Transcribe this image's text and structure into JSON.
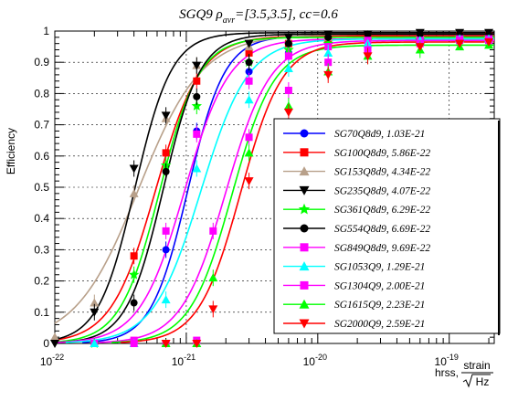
{
  "chart_data": {
    "type": "line",
    "title_main": "SGQ9 ρ",
    "title_sub": "avr",
    "title_rest": "=[3.5,3.5], cc=0.6",
    "ylabel": "Efficiency",
    "xlabel_left": "hrss,",
    "xlabel_top": "strain",
    "xlabel_bottom": "Hz",
    "x_scale": "log",
    "xlim": [
      1e-22,
      2.2e-19
    ],
    "ylim": [
      0,
      1
    ],
    "grid": true,
    "legend_position": "right-center",
    "x_ticks": [
      {
        "value": 1e-22,
        "base": "10",
        "exp": "-22"
      },
      {
        "value": 1e-21,
        "base": "10",
        "exp": "-21"
      },
      {
        "value": 1e-20,
        "base": "10",
        "exp": "-20"
      },
      {
        "value": 1e-19,
        "base": "10",
        "exp": "-19"
      }
    ],
    "y_ticks": [
      "0",
      "0.1",
      "0.2",
      "0.3",
      "0.4",
      "0.5",
      "0.6",
      "0.7",
      "0.8",
      "0.9",
      "1"
    ],
    "series": [
      {
        "name": "SG70Q8d9, 1.03E-21",
        "color": "#0000ff",
        "marker": "circle",
        "x50": 1.03e-21,
        "top": 0.985,
        "width": 0.14,
        "points": [
          [
            2e-22,
            0.0
          ],
          [
            4e-22,
            0.0
          ],
          [
            7e-22,
            0.3
          ],
          [
            1.2e-21,
            0.68
          ],
          [
            3e-21,
            0.87
          ],
          [
            6e-21,
            0.93
          ],
          [
            1.2e-20,
            0.96
          ],
          [
            2.4e-20,
            0.97
          ],
          [
            6e-20,
            0.98
          ],
          [
            1.2e-19,
            0.985
          ],
          [
            2e-19,
            0.985
          ]
        ]
      },
      {
        "name": "SG100Q8d9, 5.86E-22",
        "color": "#ff0000",
        "marker": "square",
        "x50": 5.86e-22,
        "top": 0.985,
        "width": 0.17,
        "points": [
          [
            2e-22,
            0.0
          ],
          [
            4e-22,
            0.28
          ],
          [
            7e-22,
            0.61
          ],
          [
            1.2e-21,
            0.84
          ],
          [
            3e-21,
            0.93
          ],
          [
            6e-21,
            0.96
          ],
          [
            1.2e-20,
            0.97
          ],
          [
            2.4e-20,
            0.98
          ],
          [
            6e-20,
            0.98
          ],
          [
            1.2e-19,
            0.985
          ],
          [
            2e-19,
            0.985
          ]
        ]
      },
      {
        "name": "SG153Q8d9, 4.34E-22",
        "color": "#b8a08a",
        "marker": "triangle-up",
        "x50": 4.34e-22,
        "top": 0.99,
        "width": 0.24,
        "points": [
          [
            1e-22,
            0.02
          ],
          [
            2e-22,
            0.13
          ],
          [
            4e-22,
            0.48
          ],
          [
            7e-22,
            0.72
          ],
          [
            1.2e-21,
            0.89
          ],
          [
            3e-21,
            0.95
          ],
          [
            6e-21,
            0.97
          ],
          [
            1.2e-20,
            0.98
          ],
          [
            2.4e-20,
            0.98
          ],
          [
            6e-20,
            0.99
          ],
          [
            1.2e-19,
            0.99
          ],
          [
            2e-19,
            0.99
          ]
        ]
      },
      {
        "name": "SG235Q8d9, 4.07E-22",
        "color": "#000000",
        "marker": "triangle-down",
        "x50": 4.07e-22,
        "top": 0.995,
        "width": 0.14,
        "points": [
          [
            1e-22,
            0.0
          ],
          [
            2e-22,
            0.1
          ],
          [
            4e-22,
            0.56
          ],
          [
            7e-22,
            0.73
          ],
          [
            1.2e-21,
            0.89
          ],
          [
            3e-21,
            0.96
          ],
          [
            6e-21,
            0.98
          ],
          [
            1.2e-20,
            0.99
          ],
          [
            2.4e-20,
            0.99
          ],
          [
            6e-20,
            0.995
          ],
          [
            1.2e-19,
            0.995
          ],
          [
            2e-19,
            0.995
          ]
        ]
      },
      {
        "name": "SG361Q8d9, 6.29E-22",
        "color": "#00ff00",
        "marker": "star",
        "x50": 6.29e-22,
        "top": 0.98,
        "width": 0.15,
        "points": [
          [
            2e-22,
            0.0
          ],
          [
            4e-22,
            0.22
          ],
          [
            7e-22,
            0.57
          ],
          [
            1.2e-21,
            0.76
          ],
          [
            3e-21,
            0.9
          ],
          [
            6e-21,
            0.94
          ],
          [
            1.2e-20,
            0.96
          ],
          [
            2.4e-20,
            0.97
          ],
          [
            6e-20,
            0.97
          ],
          [
            1.2e-19,
            0.98
          ],
          [
            2e-19,
            0.98
          ]
        ]
      },
      {
        "name": "SG554Q8d9, 6.69E-22",
        "color": "#000000",
        "marker": "circle",
        "x50": 6.69e-22,
        "top": 0.99,
        "width": 0.14,
        "points": [
          [
            2e-22,
            0.0
          ],
          [
            4e-22,
            0.13
          ],
          [
            7e-22,
            0.55
          ],
          [
            1.2e-21,
            0.79
          ],
          [
            3e-21,
            0.9
          ],
          [
            6e-21,
            0.96
          ],
          [
            1.2e-20,
            0.98
          ],
          [
            2.4e-20,
            0.99
          ],
          [
            6e-20,
            0.99
          ],
          [
            1.2e-19,
            0.99
          ],
          [
            2e-19,
            0.99
          ]
        ]
      },
      {
        "name": "SG849Q8d9, 9.69E-22",
        "color": "#ff00ff",
        "marker": "square",
        "x50": 9.69e-22,
        "top": 0.975,
        "width": 0.17,
        "points": [
          [
            2e-22,
            0.0
          ],
          [
            4e-22,
            0.01
          ],
          [
            7e-22,
            0.36
          ],
          [
            1.2e-21,
            0.67
          ],
          [
            3e-21,
            0.84
          ],
          [
            6e-21,
            0.92
          ],
          [
            1.2e-20,
            0.95
          ],
          [
            2.4e-20,
            0.97
          ],
          [
            6e-20,
            0.97
          ],
          [
            1.2e-19,
            0.975
          ],
          [
            2e-19,
            0.975
          ]
        ]
      },
      {
        "name": "SG1053Q9, 1.29E-21",
        "color": "#00ffff",
        "marker": "triangle-up",
        "x50": 1.29e-21,
        "top": 0.975,
        "width": 0.18,
        "points": [
          [
            2e-22,
            0.0
          ],
          [
            4e-22,
            0.0
          ],
          [
            7e-22,
            0.14
          ],
          [
            1.2e-21,
            0.56
          ],
          [
            3e-21,
            0.78
          ],
          [
            6e-21,
            0.88
          ],
          [
            1.2e-20,
            0.93
          ],
          [
            2.4e-20,
            0.96
          ],
          [
            6e-20,
            0.97
          ],
          [
            1.2e-19,
            0.975
          ],
          [
            2e-19,
            0.975
          ]
        ]
      },
      {
        "name": "SG1304Q9, 2.00E-21",
        "color": "#ff00ff",
        "marker": "square",
        "x50": 2e-21,
        "top": 0.97,
        "width": 0.17,
        "points": [
          [
            4e-22,
            0.0
          ],
          [
            7e-22,
            0.0
          ],
          [
            1.2e-21,
            0.01
          ],
          [
            1.6e-21,
            0.36
          ],
          [
            3e-21,
            0.66
          ],
          [
            6e-21,
            0.81
          ],
          [
            1.2e-20,
            0.9
          ],
          [
            2.4e-20,
            0.94
          ],
          [
            6e-20,
            0.96
          ],
          [
            1.2e-19,
            0.97
          ],
          [
            2e-19,
            0.97
          ]
        ]
      },
      {
        "name": "SG1615Q9, 2.23E-21",
        "color": "#00ff00",
        "marker": "triangle-up",
        "x50": 2.23e-21,
        "top": 0.955,
        "width": 0.16,
        "points": [
          [
            7e-22,
            0.0
          ],
          [
            1.2e-21,
            0.0
          ],
          [
            1.6e-21,
            0.21
          ],
          [
            3e-21,
            0.61
          ],
          [
            6e-21,
            0.76
          ],
          [
            1.2e-20,
            0.87
          ],
          [
            2.4e-20,
            0.92
          ],
          [
            6e-20,
            0.94
          ],
          [
            1.2e-19,
            0.95
          ],
          [
            2e-19,
            0.955
          ]
        ]
      },
      {
        "name": "SG2000Q9, 2.59E-21",
        "color": "#ff0000",
        "marker": "triangle-down",
        "x50": 2.59e-21,
        "top": 0.965,
        "width": 0.16,
        "points": [
          [
            7e-22,
            0.0
          ],
          [
            1.2e-21,
            0.0
          ],
          [
            1.6e-21,
            0.11
          ],
          [
            3e-21,
            0.52
          ],
          [
            6e-21,
            0.74
          ],
          [
            1.2e-20,
            0.86
          ],
          [
            2.4e-20,
            0.92
          ],
          [
            6e-20,
            0.95
          ],
          [
            1.2e-19,
            0.96
          ],
          [
            2e-19,
            0.965
          ]
        ]
      }
    ]
  }
}
